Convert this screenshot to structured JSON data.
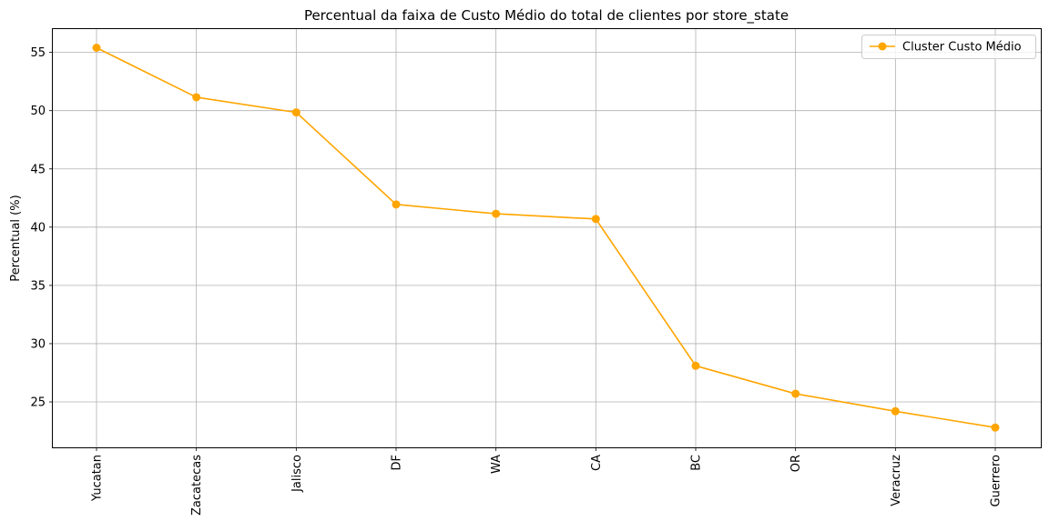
{
  "chart_data": {
    "type": "line",
    "title": "Percentual da faixa de Custo Médio do total de clientes por store_state",
    "xlabel": "",
    "ylabel": "Percentual (%)",
    "categories": [
      "Yucatan",
      "Zacatecas",
      "Jalisco",
      "DF",
      "WA",
      "CA",
      "BC",
      "OR",
      "Veracruz",
      "Guerrero"
    ],
    "series": [
      {
        "name": "Cluster Custo Médio",
        "values": [
          55.4,
          51.15,
          49.85,
          41.95,
          41.15,
          40.7,
          28.1,
          25.7,
          24.2,
          22.8
        ],
        "color": "#ffa500",
        "marker": "circle"
      }
    ],
    "ylim": [
      21.1,
      57.0
    ],
    "yticks": [
      25,
      30,
      35,
      40,
      45,
      50,
      55
    ],
    "grid": true,
    "legend_position": "top-right"
  }
}
